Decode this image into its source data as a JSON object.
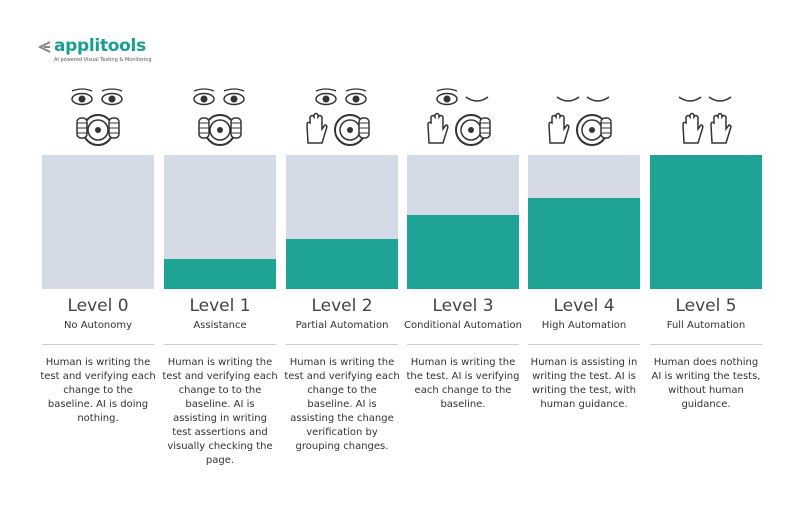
{
  "logo": {
    "name": "applitools",
    "tagline": "AI powered Visual Testing & Monitoring"
  },
  "levels": [
    {
      "title": "Level 0",
      "subtitle": "No Autonomy",
      "description": "Human is writing the test and verifying each change to the baseline. AI is doing nothing."
    },
    {
      "title": "Level 1",
      "subtitle": "Assistance",
      "description": "Human is writing the test and verifying each change to to the baseline. AI is assisting in writing test assertions and visually checking the page."
    },
    {
      "title": "Level 2",
      "subtitle": "Partial Automation",
      "description": "Human is writing the test and verifying each change to the baseline. AI is assisting the change verification by grouping changes."
    },
    {
      "title": "Level 3",
      "subtitle": "Conditional Automation",
      "description": "Human is writing the the test. AI is verifying each change to the baseline."
    },
    {
      "title": "Level 4",
      "subtitle": "High Automation",
      "description": "Human is assisting in writing the test. AI is writing the test, with human guidance."
    },
    {
      "title": "Level 5",
      "subtitle": "Full Automation",
      "description": "Human does nothing AI is writing the tests, without human guidance."
    }
  ]
}
